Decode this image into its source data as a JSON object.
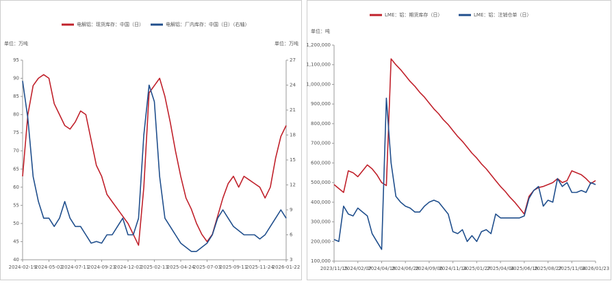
{
  "chart_data": [
    {
      "type": "line",
      "unit_left": "单位：万吨",
      "unit_right": "单位：万吨",
      "categories": [
        "2024-02-19",
        null,
        null,
        null,
        null,
        "2024-05-02",
        null,
        null,
        null,
        null,
        "2024-07-11",
        null,
        null,
        null,
        null,
        "2024-09-23",
        null,
        null,
        null,
        null,
        "2024-12-02",
        null,
        null,
        null,
        null,
        "2025-02-13",
        null,
        null,
        null,
        null,
        "2025-04-24",
        null,
        null,
        null,
        null,
        "2025-07-03",
        null,
        null,
        null,
        null,
        "2025-09-11",
        null,
        null,
        null,
        null,
        "2025-11-24",
        null,
        null,
        null,
        null,
        "2026-01-22"
      ],
      "ylim": [
        40,
        95
      ],
      "yticks": [
        40,
        45,
        50,
        55,
        60,
        65,
        70,
        75,
        80,
        85,
        90,
        95
      ],
      "y2lim": [
        3,
        27
      ],
      "y2ticks": [
        3,
        6,
        9,
        12,
        15,
        18,
        21,
        24,
        27
      ],
      "series": [
        {
          "name": "电解铝：现货库存：中国（日）",
          "color": "#c0202a",
          "values": [
            63,
            80,
            88,
            90,
            91,
            90,
            83,
            80,
            77,
            76,
            78,
            81,
            80,
            73,
            66,
            63,
            58,
            56,
            54,
            52,
            50,
            47,
            44,
            60,
            86,
            88,
            90,
            85,
            78,
            70,
            63,
            57,
            54,
            50,
            47,
            45,
            47,
            52,
            57,
            61,
            63,
            60,
            63,
            62,
            61,
            60,
            57,
            60,
            68,
            74,
            77
          ]
        },
        {
          "name": "电解铝：厂内库存：中国（日）（右轴）",
          "color": "#1f4e8c",
          "axis": "y2",
          "values": [
            24.5,
            20,
            13,
            10,
            8,
            8,
            7,
            8,
            10,
            8,
            7,
            7,
            6,
            5,
            5.2,
            5,
            6,
            6,
            7,
            8,
            6,
            6,
            8,
            18,
            24,
            22,
            13,
            8,
            7,
            6,
            5,
            4.5,
            4,
            4,
            4.5,
            5,
            6,
            8,
            9,
            8,
            7,
            6.5,
            6,
            6,
            6,
            5.5,
            6,
            7,
            8,
            9,
            8
          ]
        }
      ]
    },
    {
      "type": "line",
      "unit_left": "单位：吨",
      "categories": [
        "2023/11/15",
        null,
        null,
        null,
        null,
        "2024/02/07",
        null,
        null,
        null,
        null,
        "2024/04/18",
        null,
        null,
        null,
        null,
        "2024/06/28",
        null,
        null,
        null,
        null,
        "2024/09/06",
        null,
        null,
        null,
        null,
        "2024/11/14",
        null,
        null,
        null,
        null,
        "2025/01/27",
        null,
        null,
        null,
        null,
        "2025/04/04",
        null,
        null,
        null,
        null,
        "2025/06/18",
        null,
        null,
        null,
        null,
        "2025/08/27",
        null,
        null,
        null,
        null,
        "2025/11/04",
        null,
        null,
        null,
        null,
        "2026/01/23"
      ],
      "ylim": [
        100000,
        1200000
      ],
      "yticks": [
        {
          "value": 100000,
          "label": "100,000"
        },
        {
          "value": 200000,
          "label": "200,000"
        },
        {
          "value": 300000,
          "label": "300,000"
        },
        {
          "value": 400000,
          "label": "400,000"
        },
        {
          "value": 500000,
          "label": "500,000"
        },
        {
          "value": 600000,
          "label": "600,000"
        },
        {
          "value": 700000,
          "label": "700,000"
        },
        {
          "value": 800000,
          "label": "800,000"
        },
        {
          "value": 900000,
          "label": "900,000"
        },
        {
          "value": 1000000,
          "label": "1,000,000"
        },
        {
          "value": 1100000,
          "label": "1,100,000"
        },
        {
          "value": 1200000,
          "label": "1,200,000"
        }
      ],
      "series": [
        {
          "name": "LME：铝：期货库存（日）",
          "color": "#c0202a",
          "values": [
            490000,
            470000,
            450000,
            560000,
            550000,
            530000,
            560000,
            590000,
            570000,
            540000,
            500000,
            485000,
            1130000,
            1100000,
            1075000,
            1045000,
            1015000,
            990000,
            960000,
            935000,
            905000,
            875000,
            850000,
            820000,
            795000,
            765000,
            735000,
            710000,
            680000,
            650000,
            625000,
            595000,
            570000,
            540000,
            510000,
            480000,
            455000,
            425000,
            400000,
            370000,
            340000,
            430000,
            460000,
            475000,
            480000,
            490000,
            500000,
            520000,
            500000,
            510000,
            560000,
            550000,
            540000,
            520000,
            495000,
            510000
          ]
        },
        {
          "name": "LME：铝：注销仓单（日）",
          "color": "#1f4e8c",
          "values": [
            210000,
            200000,
            380000,
            340000,
            330000,
            370000,
            350000,
            330000,
            240000,
            200000,
            160000,
            930000,
            600000,
            430000,
            400000,
            380000,
            370000,
            350000,
            350000,
            380000,
            400000,
            410000,
            400000,
            370000,
            340000,
            250000,
            240000,
            260000,
            200000,
            230000,
            200000,
            250000,
            260000,
            240000,
            340000,
            320000,
            320000,
            320000,
            320000,
            320000,
            330000,
            420000,
            460000,
            480000,
            380000,
            410000,
            400000,
            520000,
            480000,
            500000,
            450000,
            450000,
            460000,
            450000,
            500000,
            490000
          ]
        }
      ]
    }
  ]
}
